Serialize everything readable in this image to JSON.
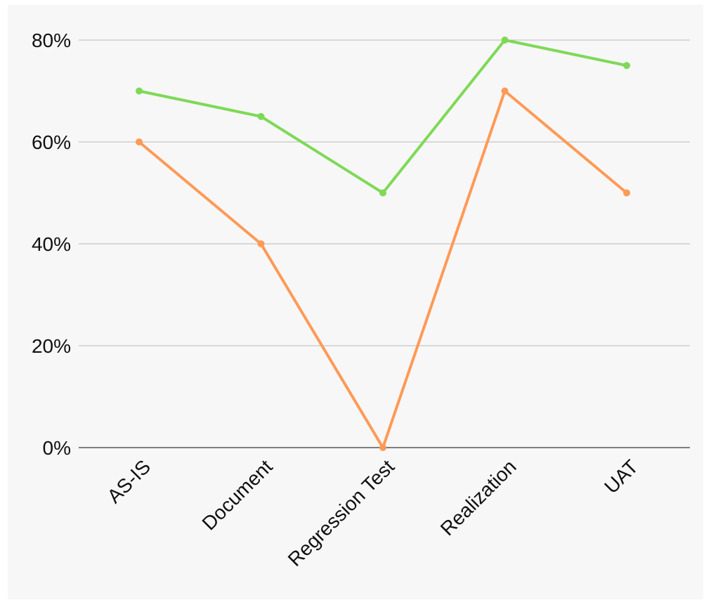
{
  "chart_data": {
    "type": "line",
    "categories": [
      "AS-IS",
      "Document",
      "Regression Test",
      "Realization",
      "UAT"
    ],
    "series": [
      {
        "color": "#7ed957",
        "values": [
          70,
          65,
          50,
          80,
          75
        ]
      },
      {
        "color": "#ff9a57",
        "values": [
          60,
          40,
          0,
          70,
          50
        ]
      }
    ],
    "ylim": [
      0,
      80
    ],
    "yticks": [
      0,
      20,
      40,
      60,
      80
    ],
    "ytick_labels": [
      "0%",
      "20%",
      "40%",
      "60%",
      "80%"
    ],
    "grid": true,
    "gridline_color": "#b8b8b8",
    "background": "#f7f7f7"
  }
}
